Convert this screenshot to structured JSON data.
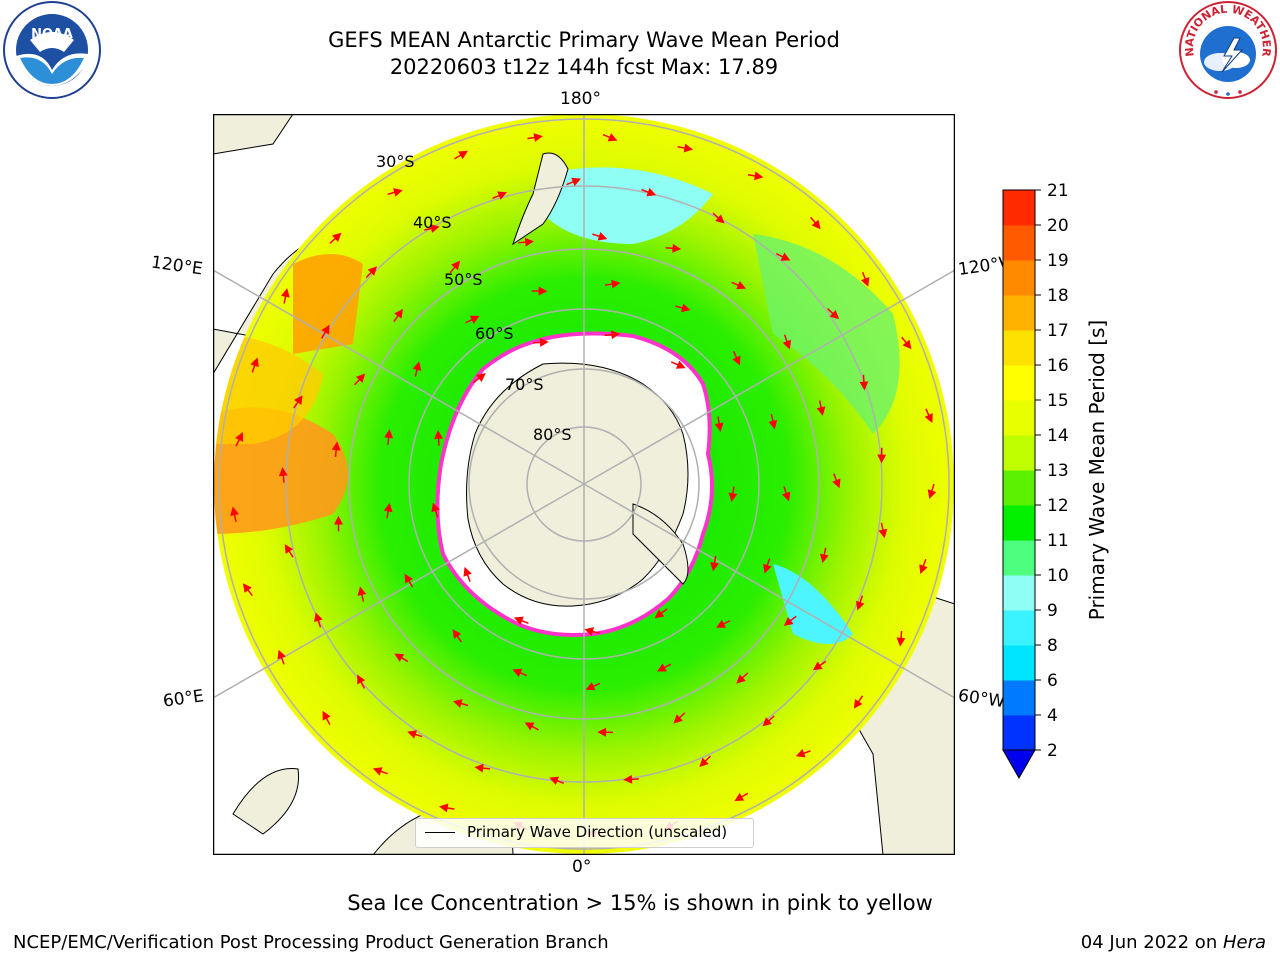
{
  "header": {
    "title_line1": "GEFS MEAN Antarctic Primary Wave Mean Period",
    "title_line2": "20220603 t12z 144h fcst   Max: 17.89"
  },
  "logos": {
    "left": {
      "icon": "noaa-logo",
      "text": "NOAA"
    },
    "right": {
      "icon": "national-weather-service-logo",
      "text": "NATIONAL WEATHER SERVICE"
    }
  },
  "map": {
    "projection": "south-polar-stereographic",
    "longitude_labels": [
      "180°",
      "120°E",
      "120°W",
      "60°E",
      "60°W",
      "0°"
    ],
    "latitude_labels": [
      "30°S",
      "40°S",
      "50°S",
      "60°S",
      "70°S",
      "80°S"
    ],
    "legend_label": "Primary Wave Direction (unscaled)"
  },
  "colorbar": {
    "label": "Primary Wave Mean Period [s]",
    "ticks": [
      "2",
      "4",
      "6",
      "8",
      "9",
      "10",
      "11",
      "12",
      "13",
      "14",
      "15",
      "16",
      "17",
      "18",
      "19",
      "20",
      "21"
    ],
    "colors": [
      "#0033ff",
      "#007bff",
      "#00e5ff",
      "#3bf3ff",
      "#8ffff5",
      "#4dfe7e",
      "#00f000",
      "#5bf000",
      "#c0ff00",
      "#e8ff00",
      "#ffff00",
      "#ffe100",
      "#ffb300",
      "#ff8a00",
      "#ff5a00",
      "#ff2a00"
    ],
    "under_color": "#0000ee"
  },
  "notes": {
    "sea_ice": "Sea Ice Concentration > 15% is shown in pink to yellow",
    "footer_left": "NCEP/EMC/Verification Post Processing Product Generation Branch",
    "footer_date": "04 Jun 2022 on ",
    "footer_host": "Hera"
  }
}
